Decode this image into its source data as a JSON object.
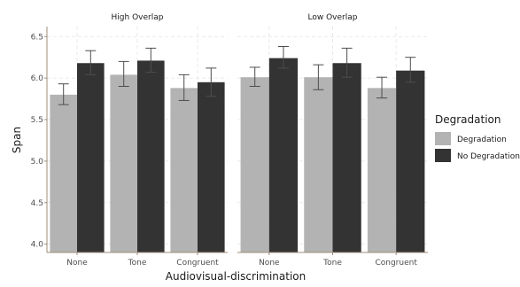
{
  "chart_data": {
    "type": "bar",
    "xlabel": "Audiovisual-discrimination",
    "ylabel": "Span",
    "ylim": [
      3.9,
      6.62
    ],
    "yticks": [
      "4.0",
      "4.5",
      "5.0",
      "5.5",
      "6.0",
      "6.5"
    ],
    "categories": [
      "None",
      "Tone",
      "Congruent"
    ],
    "legend": {
      "title": "Degradation",
      "position": "right",
      "entries": [
        {
          "name": "Degradation",
          "color": "#b3b3b3"
        },
        {
          "name": "No Degradation",
          "color": "#333333"
        }
      ]
    },
    "grid": true,
    "panels": [
      {
        "name": "High Overlap",
        "series": [
          {
            "name": "Degradation",
            "values": [
              5.8,
              6.04,
              5.88
            ],
            "err_low": [
              5.68,
              5.9,
              5.73
            ],
            "err_high": [
              5.93,
              6.2,
              6.04
            ]
          },
          {
            "name": "No Degradation",
            "values": [
              6.18,
              6.21,
              5.95
            ],
            "err_low": [
              6.04,
              6.07,
              5.78
            ],
            "err_high": [
              6.33,
              6.36,
              6.12
            ]
          }
        ]
      },
      {
        "name": "Low Overlap",
        "series": [
          {
            "name": "Degradation",
            "values": [
              6.01,
              6.01,
              5.88
            ],
            "err_low": [
              5.9,
              5.86,
              5.76
            ],
            "err_high": [
              6.13,
              6.16,
              6.01
            ]
          },
          {
            "name": "No Degradation",
            "values": [
              6.24,
              6.18,
              6.09
            ],
            "err_low": [
              6.12,
              6.01,
              5.95
            ],
            "err_high": [
              6.38,
              6.36,
              6.25
            ]
          }
        ]
      }
    ]
  }
}
